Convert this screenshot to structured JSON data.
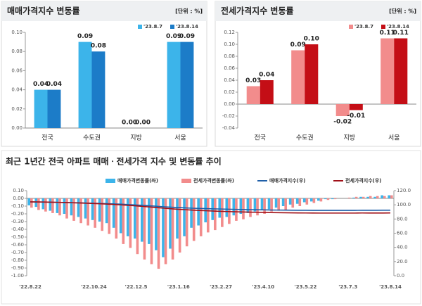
{
  "chart_data": [
    {
      "type": "bar",
      "title": "매매가격지수 변동률",
      "unit": "[단위 : %]",
      "categories": [
        "전국",
        "수도권",
        "지방",
        "서울"
      ],
      "series": [
        {
          "name": "'23.8.7",
          "color": "#3cb4ea",
          "values": [
            0.04,
            0.09,
            0.0,
            0.09
          ],
          "value_labels": [
            "0.04",
            "0.09",
            "0.00",
            "0.09"
          ]
        },
        {
          "name": "'23.8.14",
          "color": "#1c7cc8",
          "values": [
            0.04,
            0.08,
            0.0,
            0.09
          ],
          "value_labels": [
            "0.04",
            "0.08",
            "0.00",
            "0.09"
          ]
        }
      ],
      "ylim": [
        0,
        0.1
      ],
      "yticks": [
        {
          "value": 0,
          "label": "0.00"
        },
        0.02,
        0.04,
        0.06,
        0.08,
        {
          "value": 0.1,
          "label": "0.10"
        }
      ]
    },
    {
      "type": "bar",
      "title": "전세가격지수 변동률",
      "unit": "[단위 : %]",
      "categories": [
        "전국",
        "수도권",
        "지방",
        "서울"
      ],
      "series": [
        {
          "name": "'23.8.7",
          "color": "#f28c8c",
          "values": [
            0.03,
            0.09,
            -0.02,
            0.11
          ]
        },
        {
          "name": "'23.8.14",
          "color": "#c40e16",
          "values": [
            0.04,
            0.1,
            -0.01,
            0.11
          ],
          "value_labels": [
            "0.04",
            "0.10",
            "-0.01",
            "0.11"
          ]
        }
      ],
      "ylim": [
        -0.04,
        0.12
      ],
      "yticks": [
        -0.04,
        -0.02,
        {
          "value": 0,
          "label": "0.00"
        },
        0.02,
        0.04,
        0.06,
        0.08,
        {
          "value": 0.1,
          "label": "0.10"
        },
        0.12
      ]
    },
    {
      "type": "bar",
      "title": "최근 1년간 전국 아파트 매매ㆍ전세가격 지수 및 변동률 추이",
      "categories": [
        "'22.8.22",
        null,
        null,
        null,
        null,
        null,
        null,
        null,
        null,
        "'22.10.24",
        null,
        null,
        null,
        null,
        null,
        "'22.12.5",
        null,
        null,
        null,
        null,
        null,
        "'23.1.16",
        null,
        null,
        null,
        null,
        null,
        "'23.2.27",
        null,
        null,
        null,
        null,
        null,
        "'23.4.10",
        null,
        null,
        null,
        null,
        null,
        "'23.5.22",
        null,
        null,
        null,
        null,
        null,
        "'23.7.3",
        null,
        null,
        null,
        null,
        null,
        "'23.8.14"
      ],
      "series": [
        {
          "name": "매매가격변동률(좌)",
          "color": "#3cb4ea",
          "values": [
            -0.09,
            -0.11,
            -0.14,
            -0.16,
            -0.19,
            -0.2,
            -0.22,
            -0.24,
            -0.26,
            -0.28,
            -0.3,
            -0.32,
            -0.38,
            -0.45,
            -0.49,
            -0.52,
            -0.56,
            -0.59,
            -0.67,
            -0.76,
            -0.65,
            -0.52,
            -0.49,
            -0.38,
            -0.35,
            -0.31,
            -0.28,
            -0.25,
            -0.24,
            -0.22,
            -0.2,
            -0.19,
            -0.17,
            -0.15,
            -0.14,
            -0.12,
            -0.1,
            -0.08,
            -0.07,
            -0.05,
            -0.04,
            -0.03,
            -0.01,
            -0.01,
            0.0,
            0.0,
            0.01,
            0.02,
            0.02,
            0.02,
            0.04,
            0.04
          ]
        },
        {
          "name": "전세가격변동률(좌)",
          "color": "#f28c8c",
          "values": [
            -0.12,
            -0.15,
            -0.17,
            -0.19,
            -0.22,
            -0.26,
            -0.29,
            -0.32,
            -0.35,
            -0.38,
            -0.42,
            -0.46,
            -0.52,
            -0.59,
            -0.64,
            -0.72,
            -0.79,
            -0.85,
            -0.91,
            -0.85,
            -0.79,
            -0.7,
            -0.62,
            -0.55,
            -0.49,
            -0.44,
            -0.41,
            -0.37,
            -0.33,
            -0.29,
            -0.27,
            -0.24,
            -0.22,
            -0.2,
            -0.17,
            -0.16,
            -0.15,
            -0.12,
            -0.1,
            -0.08,
            -0.06,
            -0.04,
            -0.02,
            -0.01,
            0.0,
            0.01,
            0.02,
            0.02,
            0.03,
            0.03,
            0.03,
            0.04
          ]
        },
        {
          "name": "매매가격지수(우)",
          "type": "line",
          "axis": "y2",
          "color": "#1f5fa8",
          "values": [
            104.0,
            103.9,
            103.8,
            103.6,
            103.4,
            103.2,
            103.0,
            102.8,
            102.5,
            102.2,
            101.9,
            101.6,
            101.2,
            100.8,
            100.3,
            99.8,
            99.2,
            98.6,
            97.9,
            97.2,
            96.6,
            96.1,
            95.6,
            95.2,
            94.9,
            94.6,
            94.3,
            94.1,
            93.8,
            93.6,
            93.4,
            93.2,
            93.0,
            92.9,
            92.7,
            92.6,
            92.5,
            92.4,
            92.3,
            92.3,
            92.2,
            92.2,
            92.2,
            92.2,
            92.2,
            92.2,
            92.2,
            92.3,
            92.3,
            92.3,
            92.4,
            92.4
          ]
        },
        {
          "name": "전세가격지수(우)",
          "type": "line",
          "axis": "y2",
          "color": "#a01018",
          "values": [
            104.2,
            104.1,
            103.9,
            103.7,
            103.5,
            103.2,
            102.9,
            102.6,
            102.2,
            101.8,
            101.4,
            101.0,
            100.4,
            99.8,
            99.2,
            98.5,
            97.7,
            96.9,
            96.0,
            95.2,
            94.4,
            93.7,
            93.1,
            92.5,
            92.0,
            91.6,
            91.2,
            90.8,
            90.5,
            90.2,
            89.9,
            89.7,
            89.5,
            89.3,
            89.1,
            88.9,
            88.8,
            88.7,
            88.6,
            88.5,
            88.5,
            88.4,
            88.4,
            88.4,
            88.4,
            88.4,
            88.4,
            88.5,
            88.5,
            88.5,
            88.5,
            88.6
          ]
        }
      ],
      "ylim": [
        -1.0,
        0.1
      ],
      "yticks": [
        {
          "value": 0.1,
          "label": "0.10"
        },
        {
          "value": 0,
          "label": "0.00"
        },
        {
          "value": -0.1,
          "label": "-0.10"
        },
        {
          "value": -0.2,
          "label": "-0.20"
        },
        {
          "value": -0.3,
          "label": "-0.30"
        },
        {
          "value": -0.4,
          "label": "-0.40"
        },
        {
          "value": -0.5,
          "label": "-0.50"
        },
        {
          "value": -0.6,
          "label": "-0.60"
        },
        {
          "value": -0.7,
          "label": "-0.70"
        },
        {
          "value": -0.8,
          "label": "-0.80"
        },
        {
          "value": -0.9,
          "label": "-0.90"
        },
        {
          "value": -1.0,
          "label": "-1.00"
        }
      ],
      "y2lim": [
        0,
        120
      ],
      "y2ticks": [
        {
          "value": 0,
          "label": "0.0"
        },
        {
          "value": 20,
          "label": "20.0"
        },
        {
          "value": 40,
          "label": "40.0"
        },
        {
          "value": 60,
          "label": "60.0"
        },
        {
          "value": 80,
          "label": "80.0"
        },
        {
          "value": 100,
          "label": "100.0"
        },
        {
          "value": 120,
          "label": "120.0"
        }
      ]
    }
  ]
}
